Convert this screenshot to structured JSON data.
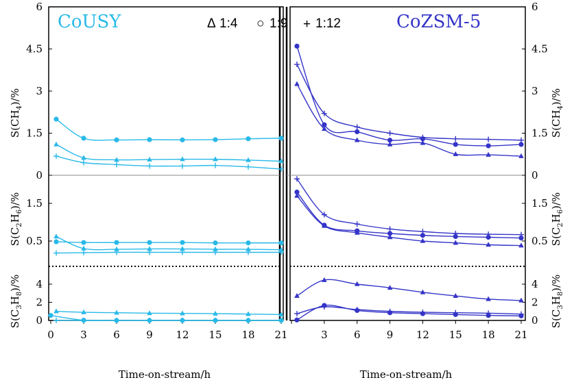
{
  "figure": {
    "title_left": "CoUSY",
    "title_right": "CoZSM-5",
    "legend": [
      {
        "marker": "triangle",
        "symbol": "Δ",
        "label": "1:4"
      },
      {
        "marker": "circle",
        "symbol": "○",
        "label": "1:9"
      },
      {
        "marker": "cross",
        "symbol": "+",
        "label": "1:12"
      }
    ],
    "colors": {
      "cousy": "#29b9e8",
      "cozsm5": "#3434c8"
    },
    "xlabel": "Time-on-stream/h",
    "xticks": [
      "0",
      "3",
      "6",
      "9",
      "12",
      "15",
      "18",
      "21"
    ],
    "ylabels": {
      "ch4": {
        "main": "S(CH",
        "sub": "4",
        "end": ")/%"
      },
      "c2h6": {
        "main": "S(C",
        "sub1": "2",
        "mid": "H",
        "sub2": "6",
        "end": ")/%"
      },
      "c3h8": {
        "main": "S(C",
        "sub1": "3",
        "mid": "H",
        "sub2": "8",
        "end": ")/%"
      }
    }
  },
  "chart_data": [
    {
      "type": "line",
      "title": "CoUSY",
      "panel": "S(CH4)/%",
      "xlabel": "Time-on-stream/h",
      "xlim": [
        0,
        21
      ],
      "ylim": [
        0,
        6
      ],
      "yticks": [
        "0",
        "1.5",
        "3",
        "4.5",
        "6"
      ],
      "x": [
        0.5,
        3,
        6,
        9,
        12,
        15,
        18,
        21
      ],
      "series": [
        {
          "name": "1:4",
          "marker": "triangle",
          "values": [
            1.1,
            0.62,
            0.55,
            0.56,
            0.57,
            0.57,
            0.54,
            0.5
          ]
        },
        {
          "name": "1:9",
          "marker": "circle",
          "values": [
            2.0,
            1.32,
            1.26,
            1.27,
            1.26,
            1.27,
            1.3,
            1.32
          ]
        },
        {
          "name": "1:12",
          "marker": "cross",
          "values": [
            0.68,
            0.45,
            0.38,
            0.33,
            0.33,
            0.35,
            0.3,
            0.22
          ]
        }
      ]
    },
    {
      "type": "line",
      "title": "CoZSM-5",
      "panel": "S(CH4)/%",
      "xlabel": "Time-on-stream/h",
      "xlim": [
        0,
        21
      ],
      "ylim": [
        0,
        6
      ],
      "yticks": [
        "0",
        "1.5",
        "3",
        "4.5",
        "6"
      ],
      "x": [
        0.5,
        3,
        6,
        9,
        12,
        15,
        18,
        21
      ],
      "series": [
        {
          "name": "1:4",
          "marker": "triangle",
          "values": [
            3.25,
            1.65,
            1.25,
            1.1,
            1.15,
            0.75,
            0.73,
            0.68
          ]
        },
        {
          "name": "1:9",
          "marker": "circle",
          "values": [
            4.6,
            1.8,
            1.55,
            1.25,
            1.3,
            1.1,
            1.05,
            1.1
          ]
        },
        {
          "name": "1:12",
          "marker": "cross",
          "values": [
            3.95,
            2.2,
            1.72,
            1.5,
            1.35,
            1.3,
            1.28,
            1.25
          ]
        }
      ]
    },
    {
      "type": "line",
      "title": "CoUSY",
      "panel": "S(C2H6)/%",
      "xlabel": "Time-on-stream/h",
      "xlim": [
        0,
        21
      ],
      "ylim": [
        -0.3,
        2.2
      ],
      "yticks": [
        "0.5",
        "1.5"
      ],
      "x": [
        0.5,
        3,
        6,
        9,
        12,
        15,
        18,
        21
      ],
      "series": [
        {
          "name": "1:4",
          "marker": "triangle",
          "values": [
            0.62,
            0.3,
            0.28,
            0.29,
            0.29,
            0.28,
            0.28,
            0.27
          ]
        },
        {
          "name": "1:9",
          "marker": "circle",
          "values": [
            0.48,
            0.46,
            0.46,
            0.46,
            0.46,
            0.45,
            0.45,
            0.45
          ]
        },
        {
          "name": "1:12",
          "marker": "cross",
          "values": [
            0.18,
            0.19,
            0.2,
            0.2,
            0.2,
            0.2,
            0.2,
            0.2
          ]
        }
      ]
    },
    {
      "type": "line",
      "title": "CoZSM-5",
      "panel": "S(C2H6)/%",
      "xlabel": "Time-on-stream/h",
      "xlim": [
        0,
        21
      ],
      "ylim": [
        -0.3,
        2.2
      ],
      "yticks": [
        "0.5",
        "1.5"
      ],
      "x": [
        0.5,
        3,
        6,
        9,
        12,
        15,
        18,
        21
      ],
      "series": [
        {
          "name": "1:4",
          "marker": "triangle",
          "values": [
            1.7,
            0.9,
            0.72,
            0.6,
            0.5,
            0.45,
            0.4,
            0.38
          ]
        },
        {
          "name": "1:9",
          "marker": "circle",
          "values": [
            1.8,
            0.92,
            0.77,
            0.7,
            0.65,
            0.62,
            0.6,
            0.58
          ]
        },
        {
          "name": "1:12",
          "marker": "cross",
          "values": [
            2.15,
            1.2,
            0.95,
            0.82,
            0.75,
            0.7,
            0.68,
            0.67
          ]
        }
      ]
    },
    {
      "type": "line",
      "title": "CoUSY",
      "panel": "S(C3H8)/%",
      "xlabel": "Time-on-stream/h",
      "xlim": [
        0,
        21
      ],
      "ylim": [
        0,
        6
      ],
      "yticks": [
        "0",
        "2",
        "4"
      ],
      "x": [
        0,
        0.5,
        3,
        6,
        9,
        12,
        15,
        18,
        21
      ],
      "series": [
        {
          "name": "1:4",
          "marker": "triangle",
          "values": [
            null,
            1.0,
            0.9,
            0.85,
            0.8,
            0.78,
            0.75,
            0.7,
            0.65
          ]
        },
        {
          "name": "1:9",
          "marker": "circle",
          "values": [
            0.55,
            null,
            0.02,
            0.0,
            0.0,
            0.0,
            0.0,
            0.0,
            0.0
          ]
        },
        {
          "name": "1:12",
          "marker": "cross",
          "values": [
            null,
            0.0,
            0.0,
            0.0,
            0.0,
            0.0,
            0.0,
            0.0,
            0.0
          ]
        }
      ]
    },
    {
      "type": "line",
      "title": "CoZSM-5",
      "panel": "S(C3H8)/%",
      "xlabel": "Time-on-stream/h",
      "xlim": [
        0,
        21
      ],
      "ylim": [
        0,
        6
      ],
      "yticks": [
        "0",
        "2",
        "4"
      ],
      "x": [
        0.5,
        3,
        6,
        9,
        12,
        15,
        18,
        21
      ],
      "series": [
        {
          "name": "1:4",
          "marker": "triangle",
          "values": [
            2.7,
            4.45,
            4.0,
            3.6,
            3.1,
            2.7,
            2.35,
            2.2
          ]
        },
        {
          "name": "1:9",
          "marker": "circle",
          "values": [
            0.05,
            1.65,
            1.1,
            0.85,
            0.75,
            0.65,
            0.55,
            0.5
          ]
        },
        {
          "name": "1:12",
          "marker": "cross",
          "values": [
            0.75,
            1.5,
            1.2,
            1.0,
            0.9,
            0.85,
            0.8,
            0.7
          ]
        }
      ]
    }
  ]
}
